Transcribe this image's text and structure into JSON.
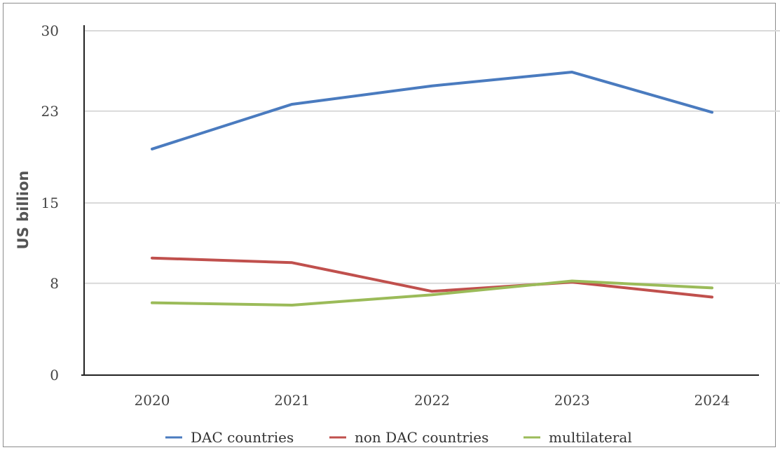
{
  "chart_data": {
    "type": "line",
    "title": "",
    "xlabel": "",
    "ylabel": "US billion",
    "categories": [
      "2020",
      "2021",
      "2022",
      "2023",
      "2024"
    ],
    "y_ticks": [
      "0",
      "8",
      "15",
      "23",
      "30"
    ],
    "ylim": [
      0,
      30
    ],
    "grid": true,
    "legend_position": "bottom",
    "series": [
      {
        "name": "DAC countries",
        "color": "#4a7bbf",
        "values": [
          19.7,
          23.6,
          25.2,
          26.4,
          22.9
        ]
      },
      {
        "name": "non DAC countries",
        "color": "#c0504d",
        "values": [
          10.2,
          9.8,
          7.3,
          8.1,
          6.8
        ]
      },
      {
        "name": "multilateral",
        "color": "#9bbb59",
        "values": [
          6.3,
          6.1,
          7.0,
          8.2,
          7.6
        ]
      }
    ]
  }
}
